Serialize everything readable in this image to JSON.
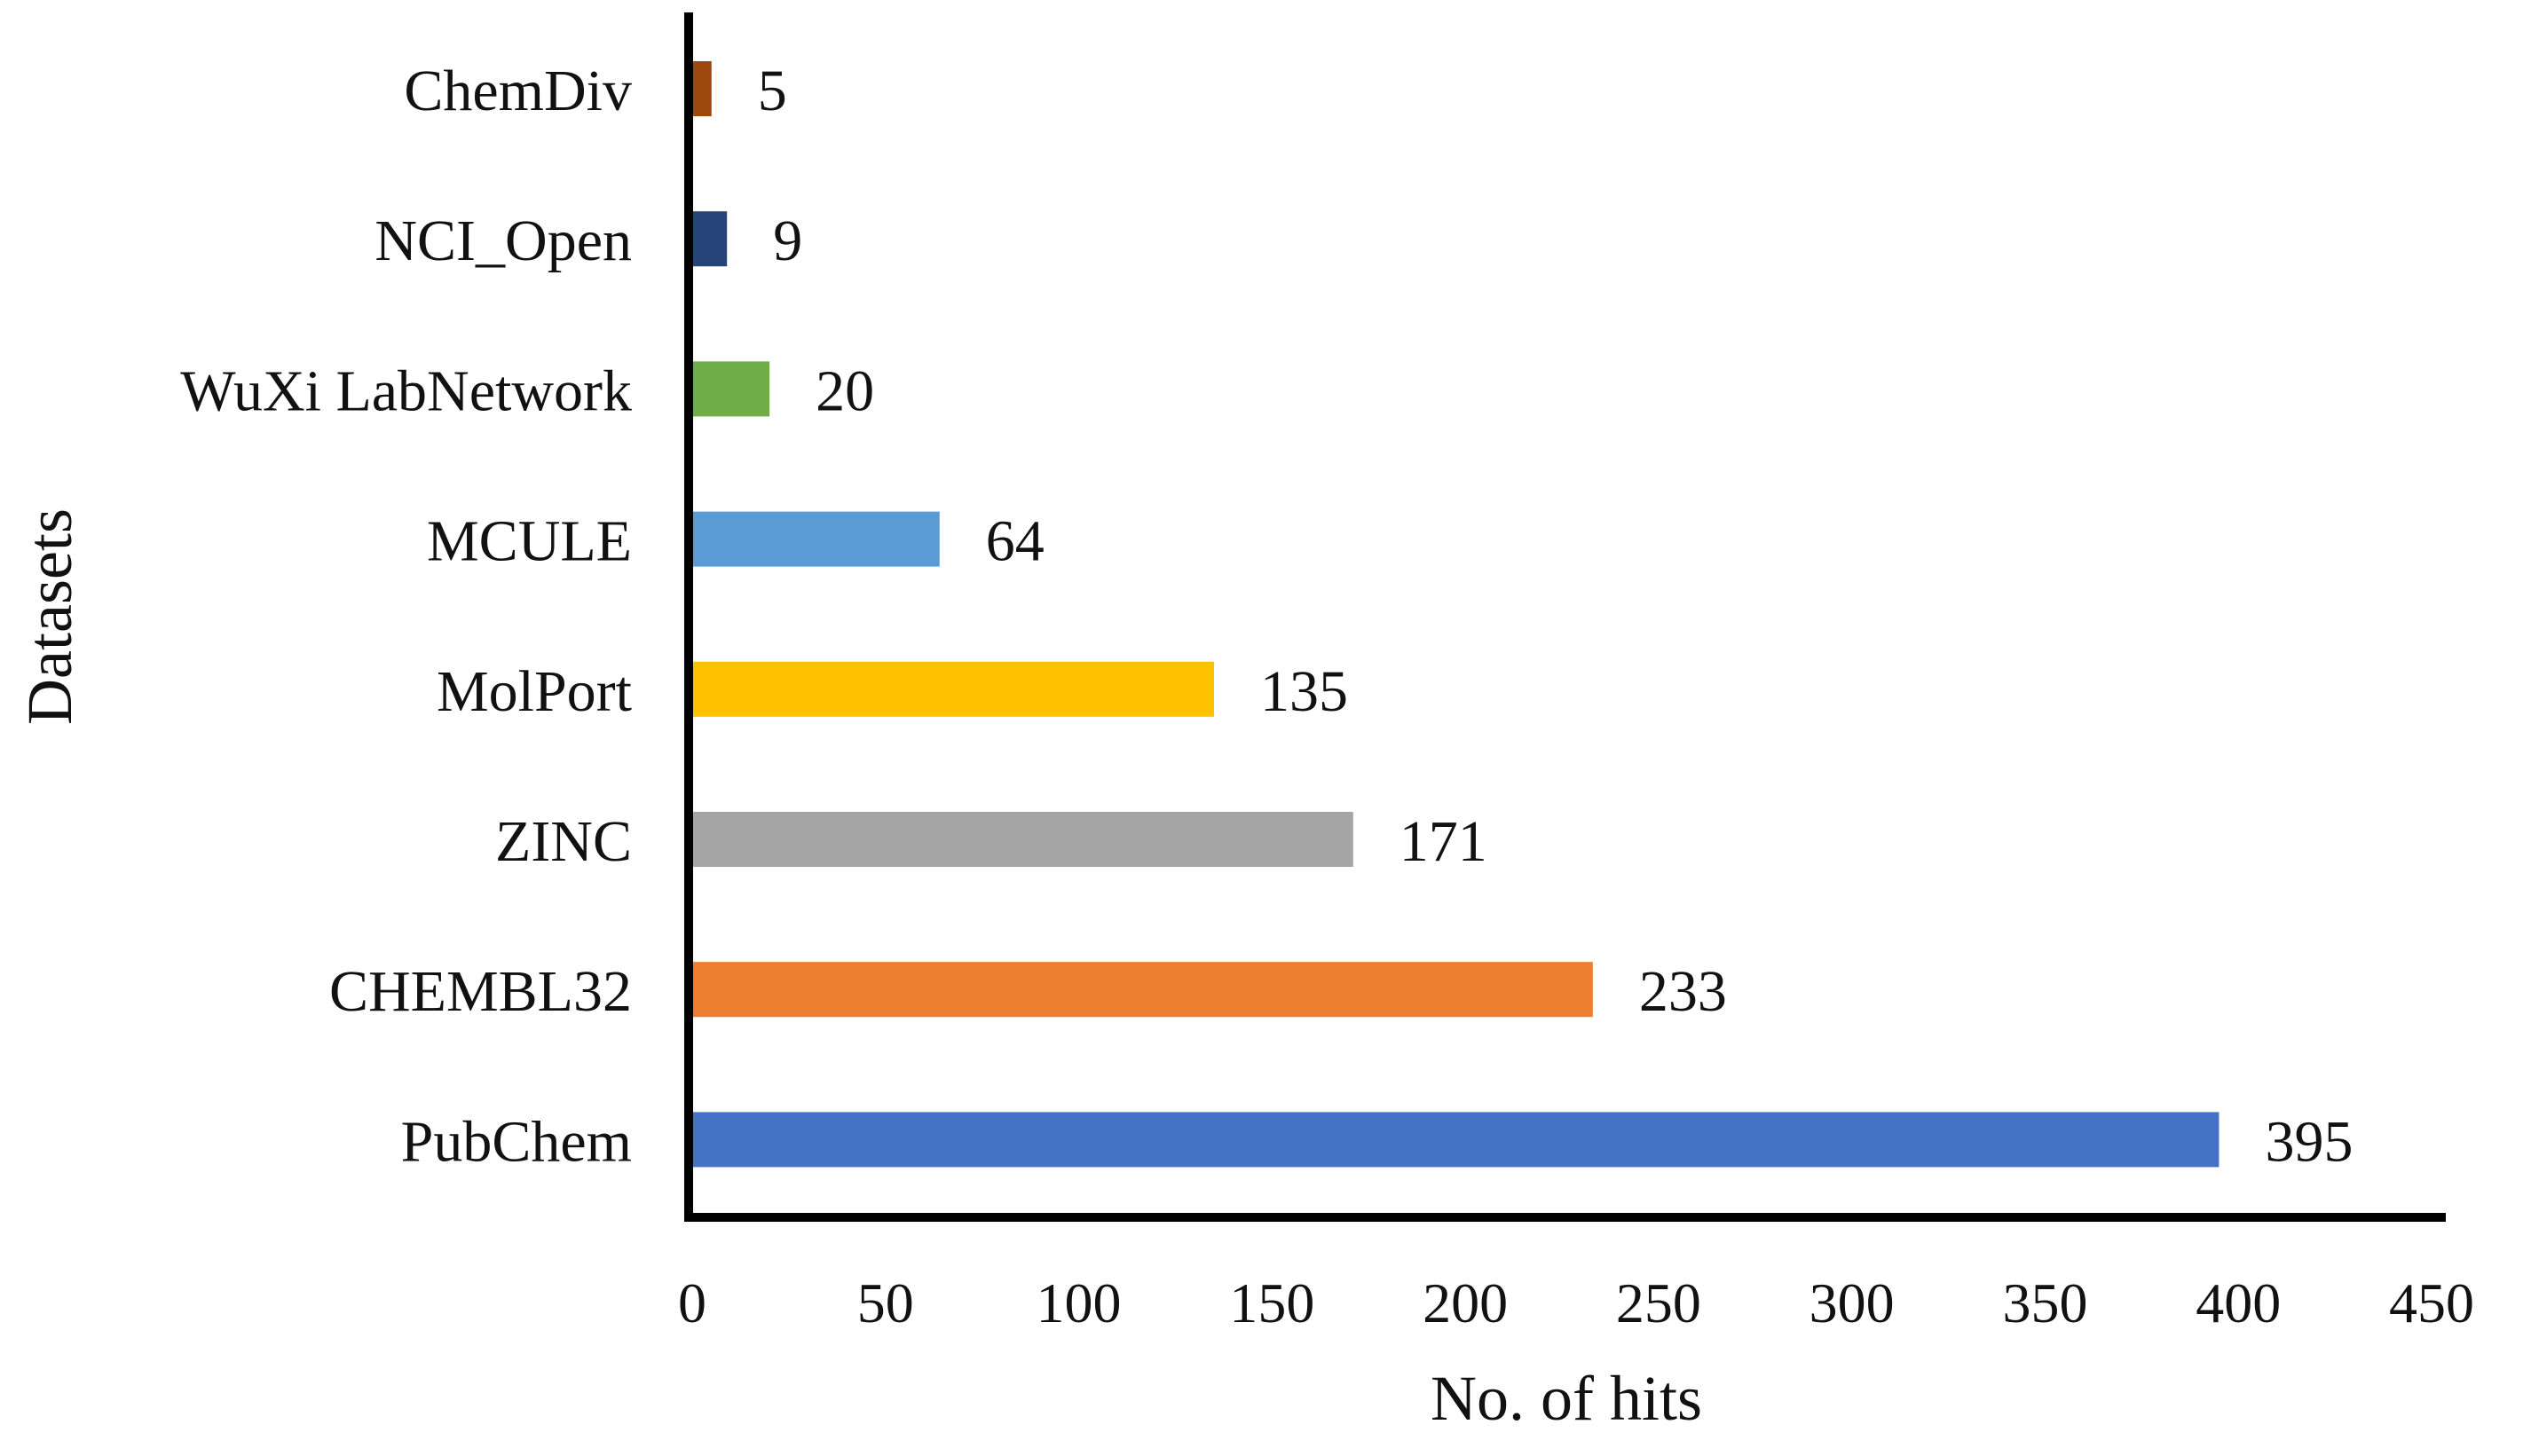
{
  "chart_data": {
    "type": "bar",
    "orientation": "horizontal",
    "title": "",
    "xlabel": "No. of hits",
    "ylabel": "Datasets",
    "xlim": [
      0,
      450
    ],
    "xticks": [
      0,
      50,
      100,
      150,
      200,
      250,
      300,
      350,
      400,
      450
    ],
    "categories": [
      "ChemDiv",
      "NCI_Open",
      "WuXi LabNetwork",
      "MCULE",
      "MolPort",
      "ZINC",
      "CHEMBL32",
      "PubChem"
    ],
    "values": [
      5,
      9,
      20,
      64,
      135,
      171,
      233,
      395
    ],
    "data_labels": [
      "5",
      "9",
      "20",
      "64",
      "135",
      "171",
      "233",
      "395"
    ],
    "colors": [
      "#9E480E",
      "#264478",
      "#70AD47",
      "#5B9BD5",
      "#FFC000",
      "#A5A5A5",
      "#ED7D31",
      "#4472C4"
    ],
    "grid": false,
    "legend": "none"
  }
}
